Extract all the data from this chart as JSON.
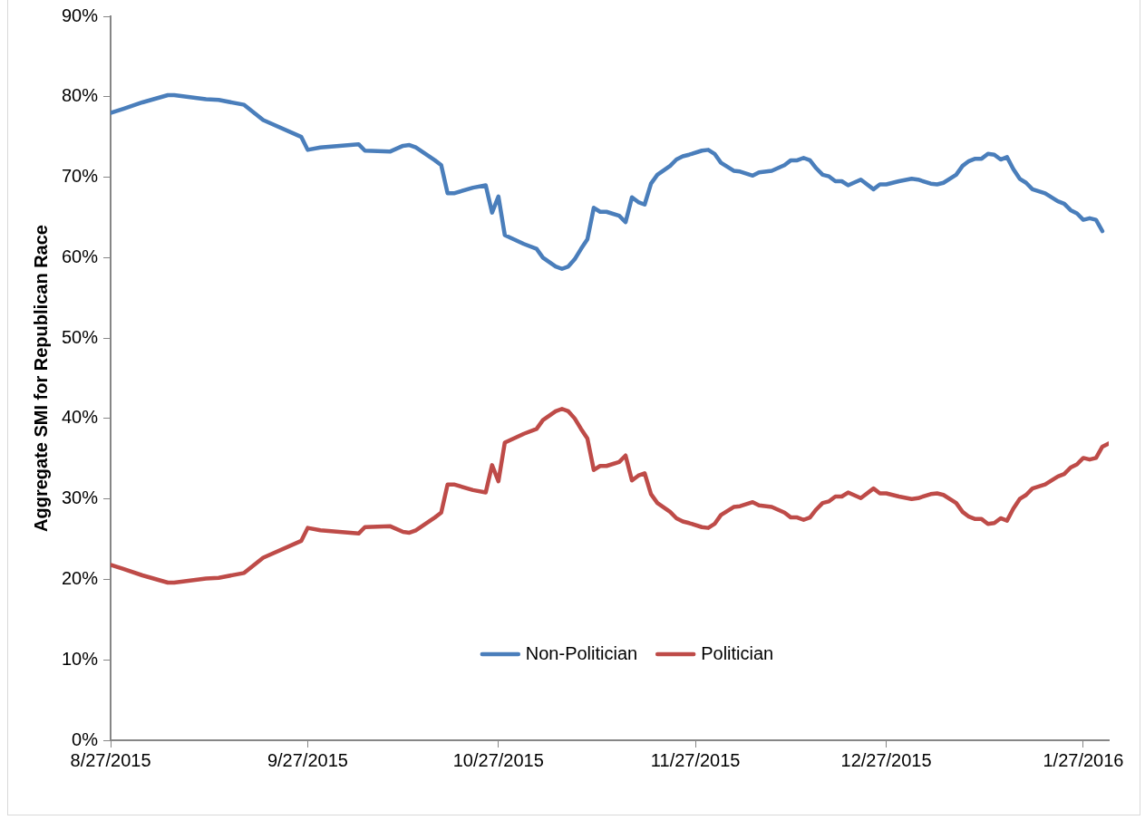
{
  "chart_data": {
    "type": "line",
    "ylabel": "Aggregate SMI for Republican Race",
    "xlim": [
      "2015-08-27",
      "2016-01-31"
    ],
    "xticks": [
      {
        "value": "2015-08-27",
        "label": "8/27/2015"
      },
      {
        "value": "2015-09-27",
        "label": "9/27/2015"
      },
      {
        "value": "2015-10-27",
        "label": "10/27/2015"
      },
      {
        "value": "2015-11-27",
        "label": "11/27/2015"
      },
      {
        "value": "2015-12-27",
        "label": "12/27/2015"
      },
      {
        "value": "2016-01-27",
        "label": "1/27/2016"
      }
    ],
    "ylim": [
      0,
      90
    ],
    "yticks": [
      {
        "value": 0,
        "label": "0%"
      },
      {
        "value": 10,
        "label": "10%"
      },
      {
        "value": 20,
        "label": "20%"
      },
      {
        "value": 30,
        "label": "30%"
      },
      {
        "value": 40,
        "label": "40%"
      },
      {
        "value": 50,
        "label": "50%"
      },
      {
        "value": 60,
        "label": "60%"
      },
      {
        "value": 70,
        "label": "70%"
      },
      {
        "value": 80,
        "label": "80%"
      },
      {
        "value": 90,
        "label": "90%"
      }
    ],
    "grid": false,
    "legend": "bottom",
    "marker": "none",
    "line_style": "solid",
    "series": [
      {
        "name": "Non-Politician",
        "color": "#4a7ebb",
        "x": [
          "2015-08-27",
          "2015-08-29",
          "2015-09-01",
          "2015-09-05",
          "2015-09-06",
          "2015-09-11",
          "2015-09-13",
          "2015-09-17",
          "2015-09-20",
          "2015-09-26",
          "2015-09-27",
          "2015-09-29",
          "2015-10-05",
          "2015-10-06",
          "2015-10-10",
          "2015-10-12",
          "2015-10-13",
          "2015-10-14",
          "2015-10-17",
          "2015-10-18",
          "2015-10-19",
          "2015-10-20",
          "2015-10-23",
          "2015-10-25",
          "2015-10-26",
          "2015-10-27",
          "2015-10-28",
          "2015-10-31",
          "2015-11-02",
          "2015-11-03",
          "2015-11-05",
          "2015-11-06",
          "2015-11-07",
          "2015-11-08",
          "2015-11-09",
          "2015-11-10",
          "2015-11-11",
          "2015-11-12",
          "2015-11-13",
          "2015-11-15",
          "2015-11-16",
          "2015-11-17",
          "2015-11-18",
          "2015-11-19",
          "2015-11-20",
          "2015-11-21",
          "2015-11-23",
          "2015-11-24",
          "2015-11-25",
          "2015-11-26",
          "2015-11-28",
          "2015-11-29",
          "2015-11-30",
          "2015-12-01",
          "2015-12-03",
          "2015-12-04",
          "2015-12-06",
          "2015-12-07",
          "2015-12-09",
          "2015-12-11",
          "2015-12-12",
          "2015-12-13",
          "2015-12-14",
          "2015-12-15",
          "2015-12-16",
          "2015-12-17",
          "2015-12-18",
          "2015-12-19",
          "2015-12-20",
          "2015-12-21",
          "2015-12-23",
          "2015-12-25",
          "2015-12-26",
          "2015-12-27",
          "2015-12-29",
          "2015-12-31",
          "2016-01-01",
          "2016-01-03",
          "2016-01-04",
          "2016-01-05",
          "2016-01-07",
          "2016-01-08",
          "2016-01-09",
          "2016-01-10",
          "2016-01-11",
          "2016-01-12",
          "2016-01-13",
          "2016-01-14",
          "2016-01-15",
          "2016-01-16",
          "2016-01-17",
          "2016-01-18",
          "2016-01-19",
          "2016-01-21",
          "2016-01-23",
          "2016-01-24",
          "2016-01-25",
          "2016-01-26",
          "2016-01-27",
          "2016-01-28",
          "2016-01-29",
          "2016-01-30"
        ],
        "values": [
          78.0,
          78.5,
          79.3,
          80.2,
          80.2,
          79.7,
          79.6,
          79.0,
          77.1,
          75.0,
          73.4,
          73.7,
          74.1,
          73.3,
          73.2,
          73.9,
          74.0,
          73.7,
          72.1,
          71.5,
          68.0,
          68.0,
          68.7,
          69.0,
          65.6,
          67.6,
          62.8,
          61.7,
          61.1,
          60.0,
          58.9,
          58.6,
          58.9,
          59.8,
          61.1,
          62.3,
          66.2,
          65.7,
          65.7,
          65.2,
          64.4,
          67.5,
          66.9,
          66.6,
          69.2,
          70.3,
          71.4,
          72.2,
          72.6,
          72.8,
          73.3,
          73.4,
          72.9,
          71.8,
          70.8,
          70.7,
          70.2,
          70.6,
          70.8,
          71.5,
          72.1,
          72.1,
          72.4,
          72.1,
          71.1,
          70.3,
          70.1,
          69.5,
          69.5,
          69.0,
          69.7,
          68.5,
          69.1,
          69.1,
          69.5,
          69.8,
          69.7,
          69.2,
          69.1,
          69.3,
          70.3,
          71.4,
          72.0,
          72.3,
          72.3,
          72.9,
          72.8,
          72.2,
          72.5,
          71.0,
          69.8,
          69.3,
          68.5,
          68.0,
          67.0,
          66.7,
          65.9,
          65.5,
          64.7,
          64.9,
          64.7,
          63.3
        ]
      },
      {
        "name": "Politician",
        "color": "#be4b48",
        "x": [
          "2015-08-27",
          "2015-08-29",
          "2015-09-01",
          "2015-09-05",
          "2015-09-06",
          "2015-09-11",
          "2015-09-13",
          "2015-09-17",
          "2015-09-20",
          "2015-09-26",
          "2015-09-27",
          "2015-09-29",
          "2015-10-05",
          "2015-10-06",
          "2015-10-10",
          "2015-10-12",
          "2015-10-13",
          "2015-10-14",
          "2015-10-17",
          "2015-10-18",
          "2015-10-19",
          "2015-10-20",
          "2015-10-23",
          "2015-10-25",
          "2015-10-26",
          "2015-10-27",
          "2015-10-28",
          "2015-10-31",
          "2015-11-02",
          "2015-11-03",
          "2015-11-05",
          "2015-11-06",
          "2015-11-07",
          "2015-11-08",
          "2015-11-09",
          "2015-11-10",
          "2015-11-11",
          "2015-11-12",
          "2015-11-13",
          "2015-11-15",
          "2015-11-16",
          "2015-11-17",
          "2015-11-18",
          "2015-11-19",
          "2015-11-20",
          "2015-11-21",
          "2015-11-23",
          "2015-11-24",
          "2015-11-25",
          "2015-11-26",
          "2015-11-28",
          "2015-11-29",
          "2015-11-30",
          "2015-12-01",
          "2015-12-03",
          "2015-12-04",
          "2015-12-06",
          "2015-12-07",
          "2015-12-09",
          "2015-12-11",
          "2015-12-12",
          "2015-12-13",
          "2015-12-14",
          "2015-12-15",
          "2015-12-16",
          "2015-12-17",
          "2015-12-18",
          "2015-12-19",
          "2015-12-20",
          "2015-12-21",
          "2015-12-23",
          "2015-12-25",
          "2015-12-26",
          "2015-12-27",
          "2015-12-29",
          "2015-12-31",
          "2016-01-01",
          "2016-01-03",
          "2016-01-04",
          "2016-01-05",
          "2016-01-07",
          "2016-01-08",
          "2016-01-09",
          "2016-01-10",
          "2016-01-11",
          "2016-01-12",
          "2016-01-13",
          "2016-01-14",
          "2016-01-15",
          "2016-01-16",
          "2016-01-17",
          "2016-01-18",
          "2016-01-19",
          "2016-01-21",
          "2016-01-23",
          "2016-01-24",
          "2016-01-25",
          "2016-01-26",
          "2016-01-27",
          "2016-01-28",
          "2016-01-29",
          "2016-01-30",
          "2016-01-31"
        ],
        "values": [
          21.8,
          21.3,
          20.5,
          19.6,
          19.6,
          20.1,
          20.2,
          20.8,
          22.7,
          24.8,
          26.4,
          26.1,
          25.7,
          26.5,
          26.6,
          25.9,
          25.8,
          26.1,
          27.7,
          28.3,
          31.8,
          31.8,
          31.1,
          30.8,
          34.2,
          32.2,
          37.0,
          38.1,
          38.7,
          39.8,
          40.9,
          41.2,
          40.9,
          40.0,
          38.7,
          37.5,
          33.6,
          34.1,
          34.1,
          34.6,
          35.4,
          32.3,
          32.9,
          33.2,
          30.6,
          29.5,
          28.4,
          27.6,
          27.2,
          27.0,
          26.5,
          26.4,
          26.9,
          28.0,
          29.0,
          29.1,
          29.6,
          29.2,
          29.0,
          28.3,
          27.7,
          27.7,
          27.4,
          27.7,
          28.7,
          29.5,
          29.7,
          30.3,
          30.3,
          30.8,
          30.1,
          31.3,
          30.7,
          30.7,
          30.3,
          30.0,
          30.1,
          30.6,
          30.7,
          30.5,
          29.5,
          28.4,
          27.8,
          27.5,
          27.5,
          26.9,
          27.0,
          27.6,
          27.3,
          28.8,
          30.0,
          30.5,
          31.3,
          31.8,
          32.8,
          33.1,
          33.9,
          34.3,
          35.1,
          34.9,
          35.1,
          36.5,
          36.9
        ]
      }
    ]
  }
}
